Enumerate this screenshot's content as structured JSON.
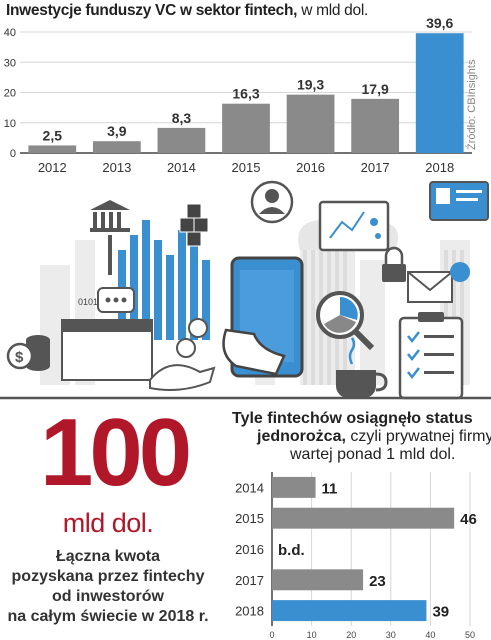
{
  "chart_data": [
    {
      "type": "bar",
      "title_bold": "Inwestycje funduszy VC w sektor fintech,",
      "title_normal": "w mld dol.",
      "source": "Źródło: CBInsights",
      "categories": [
        "2012",
        "2013",
        "2014",
        "2015",
        "2016",
        "2017",
        "2018"
      ],
      "values": [
        2.5,
        3.9,
        8.3,
        16.3,
        19.3,
        17.9,
        39.6
      ],
      "value_labels": [
        "2,5",
        "3,9",
        "8,3",
        "16,3",
        "19,3",
        "17,9",
        "39,6"
      ],
      "highlight_index": 6,
      "ylim": [
        0,
        40
      ],
      "yticks": [
        "0",
        "10",
        "20",
        "30",
        "40"
      ],
      "colors": {
        "bar": "#8a8a8a",
        "highlight": "#3a8fd0",
        "grid": "#d6d6d6"
      },
      "grid": true
    },
    {
      "type": "bar",
      "orientation": "horizontal",
      "title_line1": "Tyle fintechów osiągnęło status",
      "title_line2_bold": "jednorożca,",
      "title_line2_rest": " czyli prywatnej firmy",
      "title_line3": "wartej ponad 1 mld dol.",
      "categories": [
        "2014",
        "2015",
        "2016",
        "2017",
        "2018"
      ],
      "values": [
        11,
        46,
        null,
        23,
        39
      ],
      "value_labels": [
        "11",
        "46",
        "b.d.",
        "23",
        "39"
      ],
      "highlight_index": 4,
      "xlim": [
        0,
        50
      ],
      "xticks": [
        "0",
        "10",
        "20",
        "30",
        "40",
        "50"
      ],
      "colors": {
        "bar": "#8a8a8a",
        "highlight": "#3a8fd0",
        "grid": "#d6d6d6"
      },
      "grid": true
    }
  ],
  "headline": {
    "number": "100",
    "unit": "mld dol.",
    "description": [
      "Łączna kwota",
      "pozyskana przez fintechy",
      "od inwestorów",
      "na całym świecie w 2018 r."
    ]
  },
  "illustration": {
    "binary_text": "0101000101",
    "icons": [
      "bank-icon",
      "cloud-icon",
      "user-avatar-icon",
      "analytics-screen-icon",
      "id-card-icon",
      "smartphone-icon",
      "magnifier-icon",
      "coffee-cup-icon",
      "clipboard-checklist-icon",
      "envelope-icon",
      "padlock-icon",
      "calendar-icon",
      "coins-icon",
      "dollar-coin-icon",
      "chat-bubble-icon"
    ]
  }
}
